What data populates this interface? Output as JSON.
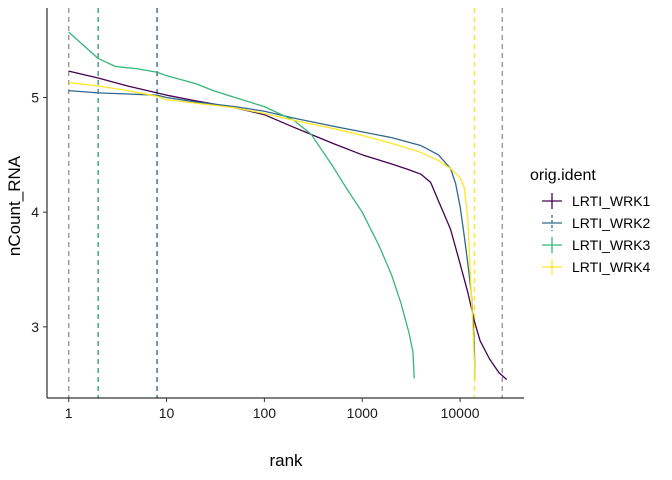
{
  "chart_data": {
    "type": "line",
    "xlabel": "rank",
    "ylabel": "nCount_RNA",
    "x_scale": "log10",
    "xlim": [
      0.6,
      45000
    ],
    "ylim": [
      2.38,
      5.78
    ],
    "x_ticks": [
      {
        "value": 1,
        "label": "1"
      },
      {
        "value": 10,
        "label": "10"
      },
      {
        "value": 100,
        "label": "100"
      },
      {
        "value": 1000,
        "label": "1000"
      },
      {
        "value": 10000,
        "label": "10000"
      }
    ],
    "y_ticks": [
      {
        "value": 3,
        "label": "3"
      },
      {
        "value": 4,
        "label": "4"
      },
      {
        "value": 5,
        "label": "5"
      }
    ],
    "grid": false,
    "legend": {
      "title": "orig.ident",
      "position": "right",
      "entries": [
        "LRTI_WRK1",
        "LRTI_WRK2",
        "LRTI_WRK3",
        "LRTI_WRK4"
      ]
    },
    "series": [
      {
        "name": "LRTI_WRK1",
        "color": "#440154",
        "points": [
          [
            1,
            5.23
          ],
          [
            2,
            5.17
          ],
          [
            4,
            5.1
          ],
          [
            8,
            5.04
          ],
          [
            10,
            5.02
          ],
          [
            20,
            4.97
          ],
          [
            50,
            4.91
          ],
          [
            100,
            4.85
          ],
          [
            200,
            4.74
          ],
          [
            500,
            4.6
          ],
          [
            1000,
            4.5
          ],
          [
            2000,
            4.42
          ],
          [
            3000,
            4.37
          ],
          [
            4000,
            4.33
          ],
          [
            5000,
            4.26
          ],
          [
            6000,
            4.1
          ],
          [
            8000,
            3.85
          ],
          [
            10000,
            3.55
          ],
          [
            12000,
            3.3
          ],
          [
            14000,
            3.05
          ],
          [
            16000,
            2.88
          ],
          [
            20000,
            2.72
          ],
          [
            25000,
            2.6
          ],
          [
            30000,
            2.54
          ]
        ]
      },
      {
        "name": "LRTI_WRK2",
        "color": "#31688e",
        "points": [
          [
            1,
            5.06
          ],
          [
            2,
            5.04
          ],
          [
            4,
            5.03
          ],
          [
            8,
            5.02
          ],
          [
            10,
            5.0
          ],
          [
            20,
            4.96
          ],
          [
            50,
            4.92
          ],
          [
            100,
            4.88
          ],
          [
            200,
            4.82
          ],
          [
            500,
            4.75
          ],
          [
            1000,
            4.7
          ],
          [
            2000,
            4.65
          ],
          [
            4000,
            4.58
          ],
          [
            6000,
            4.5
          ],
          [
            8000,
            4.38
          ],
          [
            9000,
            4.25
          ],
          [
            10000,
            4.05
          ],
          [
            11000,
            3.8
          ],
          [
            12000,
            3.55
          ],
          [
            13000,
            3.3
          ],
          [
            13600,
            3.05
          ],
          [
            14000,
            2.8
          ],
          [
            14200,
            2.55
          ]
        ]
      },
      {
        "name": "LRTI_WRK3",
        "color": "#35b779",
        "points": [
          [
            1,
            5.57
          ],
          [
            2,
            5.34
          ],
          [
            3,
            5.27
          ],
          [
            5,
            5.25
          ],
          [
            8,
            5.22
          ],
          [
            10,
            5.19
          ],
          [
            20,
            5.12
          ],
          [
            30,
            5.06
          ],
          [
            50,
            5.0
          ],
          [
            100,
            4.92
          ],
          [
            200,
            4.8
          ],
          [
            300,
            4.68
          ],
          [
            500,
            4.4
          ],
          [
            700,
            4.2
          ],
          [
            1000,
            4.0
          ],
          [
            1500,
            3.7
          ],
          [
            2000,
            3.45
          ],
          [
            2500,
            3.2
          ],
          [
            3000,
            2.95
          ],
          [
            3300,
            2.78
          ],
          [
            3400,
            2.55
          ]
        ]
      },
      {
        "name": "LRTI_WRK4",
        "color": "#fde725",
        "points": [
          [
            1,
            5.13
          ],
          [
            2,
            5.1
          ],
          [
            4,
            5.06
          ],
          [
            8,
            5.01
          ],
          [
            10,
            4.98
          ],
          [
            20,
            4.95
          ],
          [
            50,
            4.91
          ],
          [
            100,
            4.86
          ],
          [
            200,
            4.8
          ],
          [
            500,
            4.73
          ],
          [
            1000,
            4.67
          ],
          [
            2000,
            4.6
          ],
          [
            4000,
            4.52
          ],
          [
            6000,
            4.45
          ],
          [
            8000,
            4.38
          ],
          [
            10000,
            4.3
          ],
          [
            11000,
            4.22
          ],
          [
            12000,
            3.95
          ],
          [
            12500,
            3.6
          ],
          [
            13000,
            3.3
          ],
          [
            13500,
            3.0
          ],
          [
            14000,
            2.7
          ],
          [
            14200,
            2.55
          ]
        ]
      }
    ],
    "vlines": [
      {
        "x": 1,
        "color": "#999999"
      },
      {
        "x": 2,
        "color": "#3a9b84"
      },
      {
        "x": 8,
        "color": "#3b6a92"
      },
      {
        "x": 14000,
        "color": "#fde725"
      },
      {
        "x": 27000,
        "color": "#999999"
      }
    ]
  }
}
